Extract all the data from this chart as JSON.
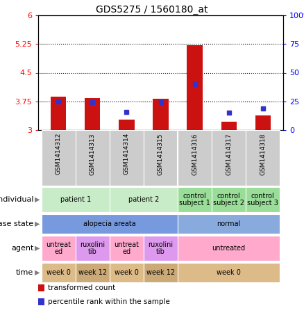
{
  "title": "GDS5275 / 1560180_at",
  "samples": [
    "GSM1414312",
    "GSM1414313",
    "GSM1414314",
    "GSM1414315",
    "GSM1414316",
    "GSM1414317",
    "GSM1414318"
  ],
  "transformed_count": [
    3.87,
    3.84,
    3.27,
    3.82,
    5.22,
    3.22,
    3.38
  ],
  "percentile_rank": [
    25,
    24,
    16,
    24,
    40,
    15,
    19
  ],
  "ylim_left": [
    3.0,
    6.0
  ],
  "ylim_right": [
    0,
    100
  ],
  "yticks_left": [
    3.0,
    3.75,
    4.5,
    5.25,
    6.0
  ],
  "yticks_right": [
    0,
    25,
    50,
    75,
    100
  ],
  "ytick_labels_left": [
    "3",
    "3.75",
    "4.5",
    "5.25",
    "6"
  ],
  "ytick_labels_right": [
    "0",
    "25",
    "50",
    "75",
    "100%"
  ],
  "hlines": [
    3.75,
    4.5,
    5.25
  ],
  "bar_color": "#cc1111",
  "dot_color": "#3333cc",
  "bar_bottom": 3.0,
  "individual_groups": [
    {
      "label": "patient 1",
      "cols": [
        0,
        1
      ],
      "color": "#c8ebc8"
    },
    {
      "label": "patient 2",
      "cols": [
        2,
        3
      ],
      "color": "#c8ebc8"
    },
    {
      "label": "control\nsubject 1",
      "cols": [
        4
      ],
      "color": "#99dd99"
    },
    {
      "label": "control\nsubject 2",
      "cols": [
        5
      ],
      "color": "#99dd99"
    },
    {
      "label": "control\nsubject 3",
      "cols": [
        6
      ],
      "color": "#99dd99"
    }
  ],
  "disease_groups": [
    {
      "label": "alopecia areata",
      "cols": [
        0,
        1,
        2,
        3
      ],
      "color": "#7799dd"
    },
    {
      "label": "normal",
      "cols": [
        4,
        5,
        6
      ],
      "color": "#88aadd"
    }
  ],
  "agent_groups": [
    {
      "label": "untreat\ned",
      "cols": [
        0
      ],
      "color": "#ffaacc"
    },
    {
      "label": "ruxolini\ntib",
      "cols": [
        1
      ],
      "color": "#dd99ee"
    },
    {
      "label": "untreat\ned",
      "cols": [
        2
      ],
      "color": "#ffaacc"
    },
    {
      "label": "ruxolini\ntib",
      "cols": [
        3
      ],
      "color": "#dd99ee"
    },
    {
      "label": "untreated",
      "cols": [
        4,
        5,
        6
      ],
      "color": "#ffaacc"
    }
  ],
  "time_groups": [
    {
      "label": "week 0",
      "cols": [
        0
      ],
      "color": "#ddbb88"
    },
    {
      "label": "week 12",
      "cols": [
        1
      ],
      "color": "#ccaa77"
    },
    {
      "label": "week 0",
      "cols": [
        2
      ],
      "color": "#ddbb88"
    },
    {
      "label": "week 12",
      "cols": [
        3
      ],
      "color": "#ccaa77"
    },
    {
      "label": "week 0",
      "cols": [
        4,
        5,
        6
      ],
      "color": "#ddbb88"
    }
  ],
  "cell_bg": "#cccccc",
  "chart_bg": "#ffffff",
  "ann_rows": [
    "individual",
    "disease state",
    "agent",
    "time"
  ]
}
